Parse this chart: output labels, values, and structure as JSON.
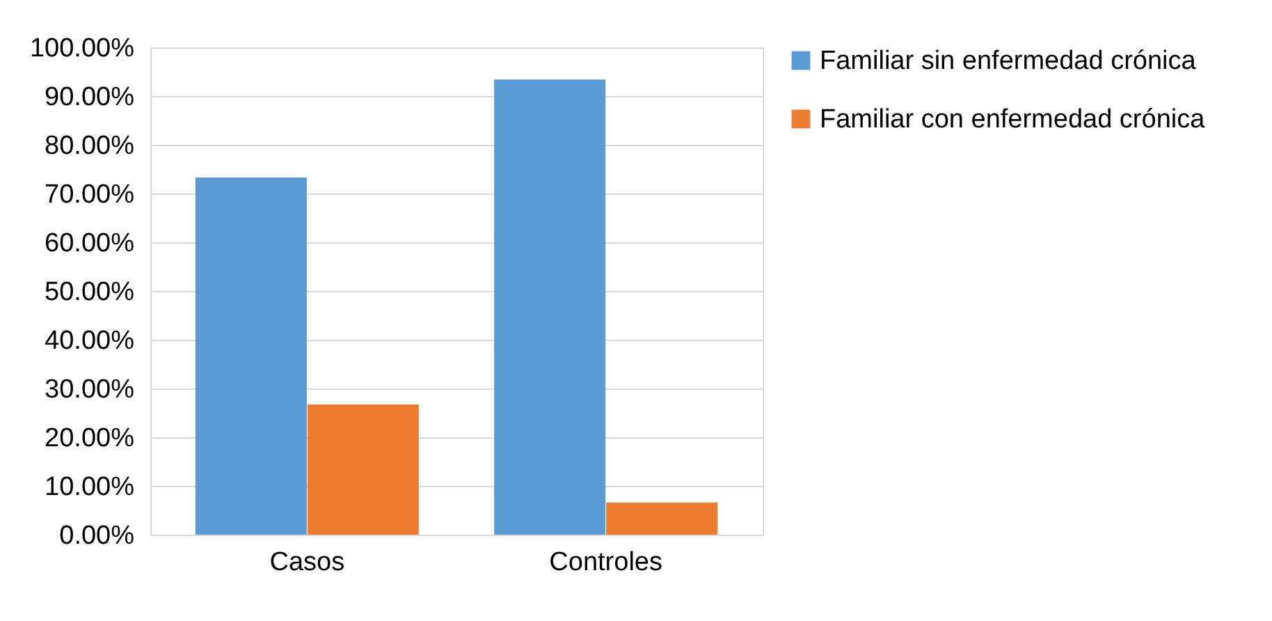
{
  "chart_data": {
    "type": "bar",
    "categories": [
      "Casos",
      "Controles"
    ],
    "series": [
      {
        "name": "Familiar sin enfermedad crónica",
        "color": "#5b9bd5",
        "values": [
          73.3,
          93.4
        ]
      },
      {
        "name": "Familiar con enfermedad crónica",
        "color": "#ed7d31",
        "values": [
          26.7,
          6.6
        ]
      }
    ],
    "ylim": [
      0,
      100
    ],
    "yticks": [
      {
        "value": 0,
        "label": "0.00%"
      },
      {
        "value": 10,
        "label": "10.00%"
      },
      {
        "value": 20,
        "label": "20.00%"
      },
      {
        "value": 30,
        "label": "30.00%"
      },
      {
        "value": 40,
        "label": "40.00%"
      },
      {
        "value": 50,
        "label": "50.00%"
      },
      {
        "value": 60,
        "label": "60.00%"
      },
      {
        "value": 70,
        "label": "70.00%"
      },
      {
        "value": 80,
        "label": "80.00%"
      },
      {
        "value": 90,
        "label": "90.00%"
      },
      {
        "value": 100,
        "label": "100.00%"
      }
    ],
    "grid": "y",
    "legend": "right"
  }
}
